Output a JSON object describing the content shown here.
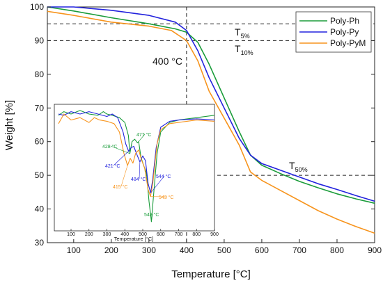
{
  "chart_data": [
    {
      "type": "line",
      "xlabel": "Temperature [°C]",
      "ylabel": "Weight [%]",
      "xlim": [
        30,
        900
      ],
      "ylim": [
        30,
        100
      ],
      "xticks": [
        "100",
        "200",
        "300",
        "400",
        "500",
        "600",
        "700",
        "800",
        "900"
      ],
      "yticks": [
        "30",
        "40",
        "50",
        "60",
        "70",
        "80",
        "90",
        "100"
      ],
      "legend_position": "top-right",
      "series": [
        {
          "name": "Poly-Ph",
          "color": "#1a9c3a",
          "points": [
            [
              30,
              100
            ],
            [
              100,
              98.8
            ],
            [
              200,
              96.8
            ],
            [
              300,
              95
            ],
            [
              370,
              93.5
            ],
            [
              400,
              92.5
            ],
            [
              430,
              89.5
            ],
            [
              460,
              83
            ],
            [
              500,
              73
            ],
            [
              540,
              63
            ],
            [
              570,
              56
            ],
            [
              600,
              53
            ],
            [
              650,
              50.5
            ],
            [
              700,
              48.2
            ],
            [
              750,
              46.3
            ],
            [
              800,
              44.5
            ],
            [
              850,
              43
            ],
            [
              900,
              41.7
            ]
          ]
        },
        {
          "name": "Poly-Py",
          "color": "#2222dd",
          "points": [
            [
              30,
              100
            ],
            [
              100,
              100
            ],
            [
              200,
              99
            ],
            [
              300,
              97.5
            ],
            [
              370,
              95.5
            ],
            [
              400,
              93
            ],
            [
              430,
              87
            ],
            [
              460,
              79
            ],
            [
              500,
              70
            ],
            [
              540,
              61
            ],
            [
              570,
              56
            ],
            [
              600,
              53.5
            ],
            [
              650,
              51.5
            ],
            [
              700,
              49.5
            ],
            [
              750,
              47.5
            ],
            [
              800,
              45.8
            ],
            [
              850,
              44
            ],
            [
              900,
              42.3
            ]
          ]
        },
        {
          "name": "Poly-PyM",
          "color": "#f7941d",
          "points": [
            [
              30,
              98.7
            ],
            [
              100,
              97.5
            ],
            [
              200,
              95.5
            ],
            [
              300,
              94.3
            ],
            [
              360,
              93
            ],
            [
              400,
              90
            ],
            [
              430,
              84
            ],
            [
              460,
              75
            ],
            [
              500,
              67
            ],
            [
              540,
              59
            ],
            [
              570,
              51
            ],
            [
              600,
              48.5
            ],
            [
              650,
              45.5
            ],
            [
              700,
              42.5
            ],
            [
              750,
              39.5
            ],
            [
              800,
              37
            ],
            [
              850,
              34.8
            ],
            [
              900,
              32.8
            ]
          ]
        }
      ],
      "reference_lines": [
        {
          "label_main": "T",
          "label_sub": "5%",
          "y": 95
        },
        {
          "label_main": "T",
          "label_sub": "10%",
          "y": 90
        },
        {
          "label_main": "T",
          "label_sub": "50%",
          "y": 50
        }
      ],
      "vertical_line": {
        "x": 400,
        "label": "400 °C"
      }
    },
    {
      "type": "line",
      "xlabel": "Temperature [°C]",
      "ylabel": "",
      "xlim": [
        30,
        900
      ],
      "xticks": [
        "100",
        "200",
        "300",
        "400",
        "500",
        "600",
        "700",
        "800",
        "900"
      ],
      "series": [
        {
          "name": "Poly-Ph",
          "color": "#1a9c3a",
          "points": [
            [
              30,
              0.92
            ],
            [
              60,
              0.95
            ],
            [
              100,
              0.93
            ],
            [
              150,
              0.96
            ],
            [
              200,
              0.93
            ],
            [
              250,
              0.92
            ],
            [
              280,
              0.95
            ],
            [
              300,
              0.93
            ],
            [
              330,
              0.92
            ],
            [
              370,
              0.9
            ],
            [
              400,
              0.86
            ],
            [
              420,
              0.75
            ],
            [
              428,
              0.6
            ],
            [
              440,
              0.7
            ],
            [
              455,
              0.72
            ],
            [
              470,
              0.69
            ],
            [
              477,
              0.7
            ],
            [
              490,
              0.57
            ],
            [
              505,
              0.5
            ],
            [
              520,
              0.44
            ],
            [
              535,
              0.2
            ],
            [
              548,
              0.03
            ],
            [
              560,
              0.25
            ],
            [
              580,
              0.6
            ],
            [
              600,
              0.78
            ],
            [
              650,
              0.86
            ],
            [
              700,
              0.88
            ],
            [
              800,
              0.9
            ],
            [
              900,
              0.92
            ]
          ]
        },
        {
          "name": "Poly-Py",
          "color": "#2222dd",
          "points": [
            [
              30,
              0.93
            ],
            [
              60,
              0.92
            ],
            [
              100,
              0.95
            ],
            [
              150,
              0.93
            ],
            [
              200,
              0.95
            ],
            [
              250,
              0.93
            ],
            [
              300,
              0.91
            ],
            [
              330,
              0.93
            ],
            [
              360,
              0.9
            ],
            [
              390,
              0.78
            ],
            [
              405,
              0.68
            ],
            [
              421,
              0.62
            ],
            [
              435,
              0.65
            ],
            [
              450,
              0.66
            ],
            [
              465,
              0.6
            ],
            [
              484,
              0.53
            ],
            [
              500,
              0.58
            ],
            [
              515,
              0.54
            ],
            [
              530,
              0.35
            ],
            [
              544,
              0.27
            ],
            [
              555,
              0.38
            ],
            [
              575,
              0.65
            ],
            [
              600,
              0.82
            ],
            [
              650,
              0.87
            ],
            [
              700,
              0.88
            ],
            [
              800,
              0.89
            ],
            [
              900,
              0.88
            ]
          ]
        },
        {
          "name": "Poly-PyM",
          "color": "#f7941d",
          "points": [
            [
              30,
              0.85
            ],
            [
              60,
              0.93
            ],
            [
              100,
              0.88
            ],
            [
              150,
              0.9
            ],
            [
              200,
              0.86
            ],
            [
              230,
              0.9
            ],
            [
              260,
              0.88
            ],
            [
              300,
              0.87
            ],
            [
              340,
              0.85
            ],
            [
              370,
              0.78
            ],
            [
              395,
              0.6
            ],
            [
              415,
              0.5
            ],
            [
              430,
              0.56
            ],
            [
              445,
              0.52
            ],
            [
              460,
              0.6
            ],
            [
              477,
              0.63
            ],
            [
              492,
              0.55
            ],
            [
              510,
              0.48
            ],
            [
              530,
              0.3
            ],
            [
              543,
              0.24
            ],
            [
              556,
              0.35
            ],
            [
              580,
              0.68
            ],
            [
              600,
              0.8
            ],
            [
              650,
              0.85
            ],
            [
              700,
              0.86
            ],
            [
              800,
              0.88
            ],
            [
              900,
              0.87
            ]
          ]
        }
      ],
      "annotations": [
        {
          "text": "428 °C",
          "color": "#1a9c3a",
          "x": 428
        },
        {
          "text": "477 °C",
          "color": "#1a9c3a",
          "x": 477
        },
        {
          "text": "421 °C",
          "color": "#2222dd",
          "x": 421
        },
        {
          "text": "484 °C",
          "color": "#2222dd",
          "x": 484
        },
        {
          "text": "544 °C",
          "color": "#2222dd",
          "x": 544
        },
        {
          "text": "415 °C",
          "color": "#f7941d",
          "x": 415
        },
        {
          "text": "543 °C",
          "color": "#f7941d",
          "x": 543
        },
        {
          "text": "548 °C",
          "color": "#1a9c3a",
          "x": 548
        }
      ]
    }
  ]
}
